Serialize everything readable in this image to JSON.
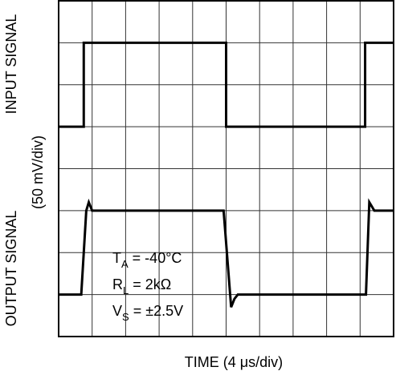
{
  "chart_data": {
    "type": "line",
    "x_label": "TIME (4 μs/div)",
    "y_labels": [
      "INPUT SIGNAL",
      "(50 mV/div)",
      "OUTPUT SIGNAL"
    ],
    "xlim": [
      0,
      40
    ],
    "xticks": [
      0,
      4,
      8,
      12,
      16,
      20,
      24,
      28,
      32,
      36,
      40
    ],
    "ylim": [
      0,
      400
    ],
    "yticks": [
      0,
      50,
      100,
      150,
      200,
      250,
      300,
      350,
      400
    ],
    "grid": true,
    "series": [
      {
        "name": "INPUT SIGNAL",
        "color": "#000000",
        "x": [
          0,
          3,
          3,
          20,
          20,
          36.6,
          36.6,
          40
        ],
        "values": [
          250,
          250,
          350,
          350,
          250,
          250,
          350,
          350
        ]
      },
      {
        "name": "OUTPUT SIGNAL",
        "color": "#000000",
        "x": [
          0,
          2.7,
          3.3,
          3.6,
          4.0,
          19.7,
          20.6,
          21.0,
          21.4,
          36.7,
          37.1,
          37.7,
          40
        ],
        "values": [
          50,
          50,
          150,
          160,
          150,
          150,
          35,
          45,
          50,
          50,
          160,
          150,
          150
        ]
      }
    ],
    "annotations": [
      {
        "main": "T",
        "sub": "A",
        "rest": " = -40°C"
      },
      {
        "main": "R",
        "sub": "L",
        "rest": " = 2kΩ"
      },
      {
        "main": "V",
        "sub": "S",
        "rest": " = ±2.5V"
      }
    ]
  }
}
